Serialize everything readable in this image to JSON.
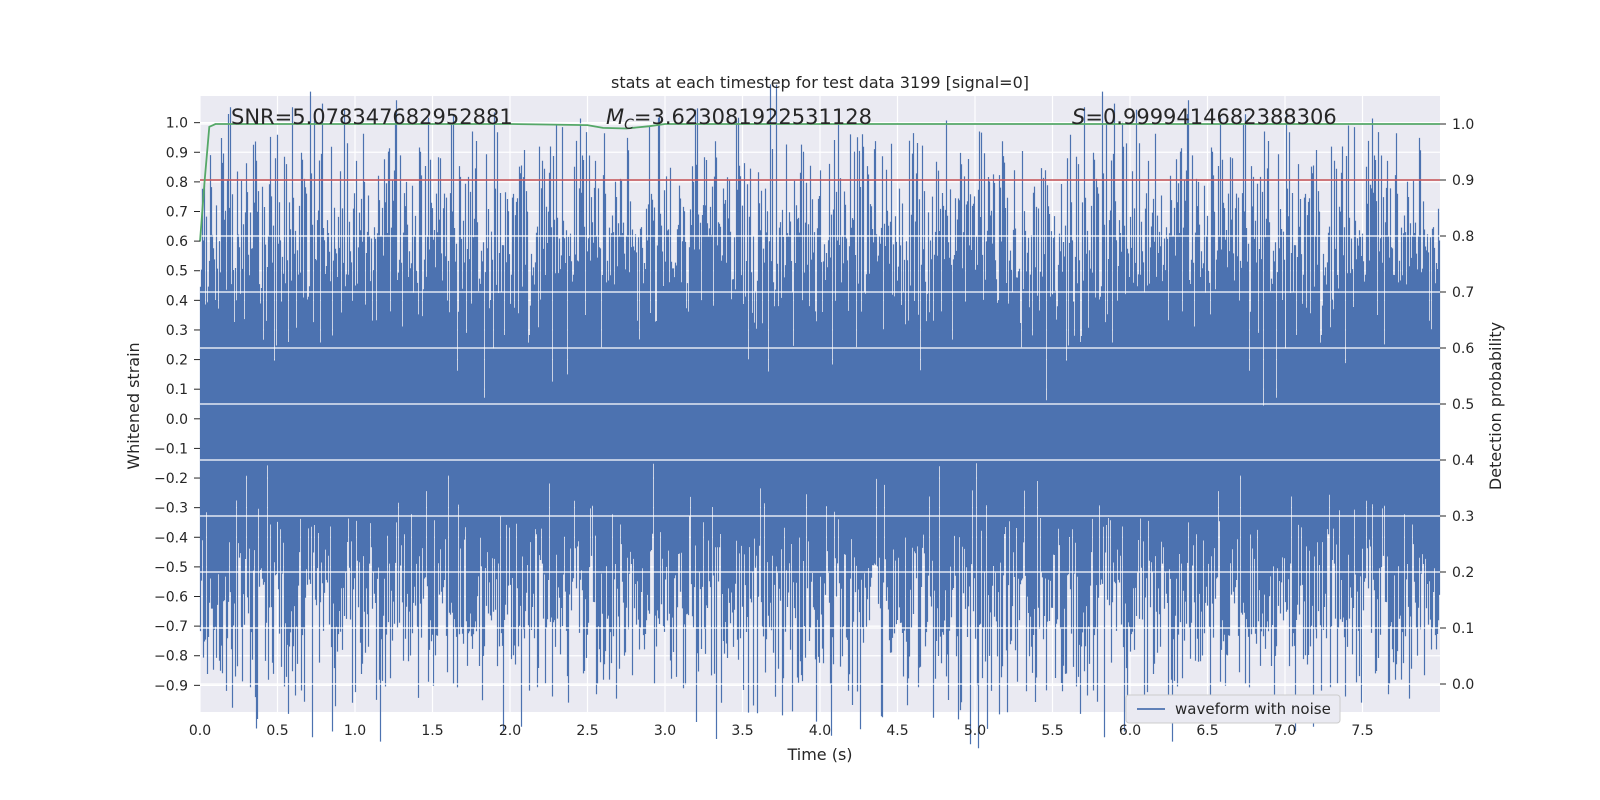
{
  "chart_data": {
    "type": "line",
    "title": "stats at each timestep for test data 3199 [signal=0]",
    "xlabel": "Time (s)",
    "ylabel_left": "Whitened strain",
    "ylabel_right": "Detection probability",
    "xlim": [
      0.0,
      8.0
    ],
    "ylim_left": [
      -0.99,
      1.09
    ],
    "ylim_right": [
      -0.05,
      1.05
    ],
    "x_ticks": [
      0.0,
      0.5,
      1.0,
      1.5,
      2.0,
      2.5,
      3.0,
      3.5,
      4.0,
      4.5,
      5.0,
      5.5,
      6.0,
      6.5,
      7.0,
      7.5
    ],
    "x_tick_labels": [
      "0.0",
      "0.5",
      "1.0",
      "1.5",
      "2.0",
      "2.5",
      "3.0",
      "3.5",
      "4.0",
      "4.5",
      "5.0",
      "5.5",
      "6.0",
      "6.5",
      "7.0",
      "7.5"
    ],
    "y_left_ticks": [
      -0.9,
      -0.8,
      -0.7,
      -0.6,
      -0.5,
      -0.4,
      -0.3,
      -0.2,
      -0.1,
      0.0,
      0.1,
      0.2,
      0.3,
      0.4,
      0.5,
      0.6,
      0.7,
      0.8,
      0.9,
      1.0
    ],
    "y_left_tick_labels": [
      "−0.9",
      "−0.8",
      "−0.7",
      "−0.6",
      "−0.5",
      "−0.4",
      "−0.3",
      "−0.2",
      "−0.1",
      "0.0",
      "0.1",
      "0.2",
      "0.3",
      "0.4",
      "0.5",
      "0.6",
      "0.7",
      "0.8",
      "0.9",
      "1.0"
    ],
    "y_right_ticks": [
      0.0,
      0.1,
      0.2,
      0.3,
      0.4,
      0.5,
      0.6,
      0.7,
      0.8,
      0.9,
      1.0
    ],
    "y_right_tick_labels": [
      "0.0",
      "0.1",
      "0.2",
      "0.3",
      "0.4",
      "0.5",
      "0.6",
      "0.7",
      "0.8",
      "0.9",
      "1.0"
    ],
    "grid": true,
    "annotations": [
      {
        "text": "SNR=5.078347682952881",
        "x": 0.2
      },
      {
        "prefix": "M",
        "sub": "C",
        "text": "=3.623081922531128",
        "x": 2.6
      },
      {
        "prefix": "S",
        "text": "=0.9999414682388306",
        "x": 5.6
      }
    ],
    "legend": {
      "placement": "lower-right",
      "entries": [
        "waveform with noise"
      ]
    },
    "threshold": {
      "axis": "right",
      "value": 0.9
    },
    "probability_curve": {
      "axis": "right",
      "x": [
        0.0,
        0.03,
        0.06,
        0.1,
        0.3,
        1.0,
        2.0,
        2.5,
        2.6,
        2.75,
        2.9,
        3.0,
        4.0,
        5.0,
        6.0,
        7.0,
        8.0
      ],
      "y": [
        0.79,
        0.9,
        0.995,
        1.0,
        1.0,
        1.0,
        1.0,
        0.998,
        0.993,
        0.992,
        0.996,
        1.0,
        1.0,
        1.0,
        1.0,
        1.0,
        1.0
      ]
    },
    "waveform": {
      "name": "waveform with noise",
      "axis": "left",
      "sample_rate": 2048,
      "positive_peaks": [
        {
          "x": 0.24,
          "y": 0.74
        },
        {
          "x": 0.35,
          "y": 0.7
        },
        {
          "x": 0.77,
          "y": 0.72
        },
        {
          "x": 1.06,
          "y": 0.8
        },
        {
          "x": 1.54,
          "y": 0.72
        },
        {
          "x": 2.71,
          "y": 0.81
        },
        {
          "x": 3.5,
          "y": 0.72
        },
        {
          "x": 4.13,
          "y": 0.76
        },
        {
          "x": 5.43,
          "y": 0.81
        },
        {
          "x": 5.95,
          "y": 1.0
        },
        {
          "x": 5.98,
          "y": 0.93
        },
        {
          "x": 6.43,
          "y": 0.81
        },
        {
          "x": 7.09,
          "y": 0.86
        },
        {
          "x": 7.55,
          "y": 0.79
        }
      ],
      "negative_peaks": [
        {
          "x": 0.23,
          "y": -0.87
        },
        {
          "x": 0.55,
          "y": -0.69
        },
        {
          "x": 1.53,
          "y": -0.71
        },
        {
          "x": 2.34,
          "y": -0.7
        },
        {
          "x": 2.99,
          "y": -0.7
        },
        {
          "x": 4.46,
          "y": -0.71
        },
        {
          "x": 4.88,
          "y": -0.8
        },
        {
          "x": 5.35,
          "y": -0.74
        },
        {
          "x": 6.39,
          "y": -0.81
        },
        {
          "x": 6.44,
          "y": -0.82
        },
        {
          "x": 7.12,
          "y": -0.77
        },
        {
          "x": 7.46,
          "y": -0.89
        },
        {
          "x": 7.7,
          "y": -0.75
        }
      ]
    }
  }
}
